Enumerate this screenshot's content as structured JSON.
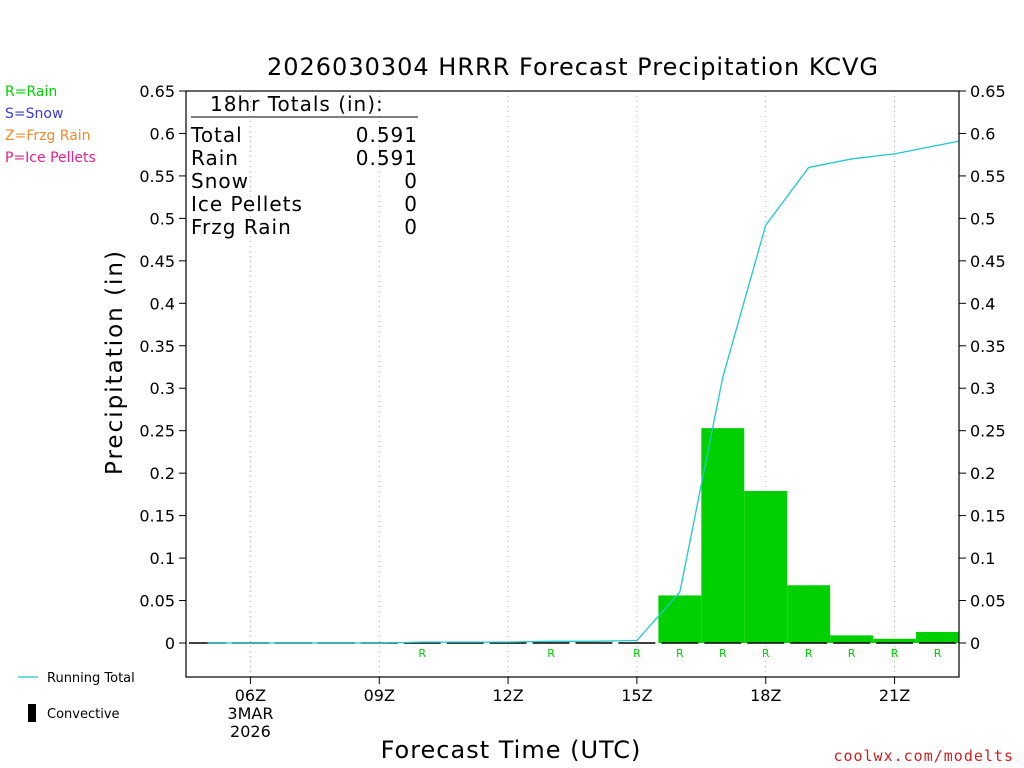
{
  "colors": {
    "rain": "#00d000",
    "snow": "#3a3ad8",
    "frzg_rain": "#f08a30",
    "ice_pellets": "#e0208a",
    "running_total": "#20c8c8",
    "credit": "#d02020",
    "grid": "#aaaaaa"
  },
  "legend": {
    "ptypes": [
      {
        "label": "R=Rain",
        "color": "#00d000"
      },
      {
        "label": "S=Snow",
        "color": "#3a3ad8"
      },
      {
        "label": "Z=Frzg Rain",
        "color": "#f08a30"
      },
      {
        "label": "P=Ice Pellets",
        "color": "#e0208a"
      }
    ],
    "running_total_label": "Running Total",
    "convective_label": "Convective"
  },
  "totals": {
    "header": "18hr Totals (in):",
    "rows": [
      {
        "label": "Total",
        "value": "0.591"
      },
      {
        "label": "Rain",
        "value": "0.591"
      },
      {
        "label": "Snow",
        "value": "0"
      },
      {
        "label": "Ice Pellets",
        "value": "0"
      },
      {
        "label": "Frzg Rain",
        "value": "0"
      }
    ]
  },
  "credit": "coolwx.com/modelts",
  "chart_data": {
    "type": "bar",
    "title": "2026030304 HRRR Forecast Precipitation KCVG",
    "xlabel": "Forecast Time (UTC)",
    "ylabel": "Precipitation (in)",
    "ylim": [
      0,
      0.65
    ],
    "yticks": [
      "0",
      "0.05",
      "0.1",
      "0.15",
      "0.2",
      "0.25",
      "0.3",
      "0.35",
      "0.4",
      "0.45",
      "0.5",
      "0.55",
      "0.6",
      "0.65"
    ],
    "xlim_hours": [
      4.5,
      22.5
    ],
    "xticks": [
      {
        "hour": 6,
        "label": "06Z",
        "sub1": "3MAR",
        "sub2": "2026"
      },
      {
        "hour": 9,
        "label": "09Z"
      },
      {
        "hour": 12,
        "label": "12Z"
      },
      {
        "hour": 15,
        "label": "15Z"
      },
      {
        "hour": 18,
        "label": "18Z"
      },
      {
        "hour": 21,
        "label": "21Z"
      }
    ],
    "grid": "vertical dotted at x ticks",
    "series": [
      {
        "name": "Hourly Precipitation",
        "type": "bar",
        "hours": [
          5,
          6,
          7,
          8,
          9,
          10,
          11,
          12,
          13,
          14,
          15,
          16,
          17,
          18,
          19,
          20,
          21,
          22
        ],
        "values": [
          0,
          0,
          0,
          0,
          0,
          0,
          0,
          0,
          0,
          0,
          0,
          0.056,
          0.253,
          0.179,
          0.068,
          0.009,
          0.005,
          0.013
        ],
        "convective": [
          0,
          0,
          0,
          0,
          0,
          0,
          0,
          0,
          0,
          0,
          0,
          0,
          0,
          0,
          0,
          0,
          0,
          0
        ]
      },
      {
        "name": "Running Total",
        "type": "line",
        "hours": [
          5,
          6,
          7,
          8,
          9,
          10,
          11,
          12,
          13,
          14,
          15,
          16,
          17,
          18,
          19,
          20,
          21,
          22.5
        ],
        "values": [
          0,
          0,
          0,
          0,
          0,
          0.001,
          0.001,
          0.001,
          0.002,
          0.002,
          0.003,
          0.06,
          0.313,
          0.492,
          0.56,
          0.57,
          0.576,
          0.591
        ]
      }
    ],
    "ptype_labels": [
      {
        "hour": 10,
        "label": "R"
      },
      {
        "hour": 13,
        "label": "R"
      },
      {
        "hour": 15,
        "label": "R"
      },
      {
        "hour": 16,
        "label": "R"
      },
      {
        "hour": 17,
        "label": "R"
      },
      {
        "hour": 18,
        "label": "R"
      },
      {
        "hour": 19,
        "label": "R"
      },
      {
        "hour": 20,
        "label": "R"
      },
      {
        "hour": 21,
        "label": "R"
      },
      {
        "hour": 22,
        "label": "R"
      }
    ]
  }
}
